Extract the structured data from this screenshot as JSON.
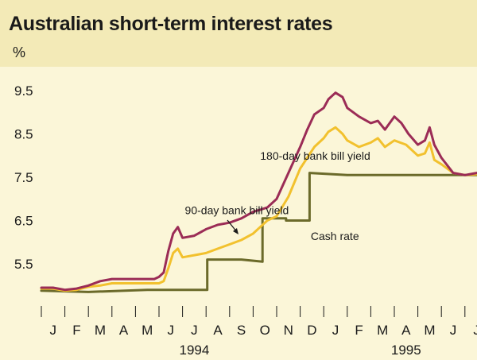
{
  "chart_data": {
    "type": "line",
    "title": "Australian short-term interest rates",
    "ylabel": "%",
    "xlabel": "",
    "ylim": [
      4.8,
      9.9
    ],
    "yticks": [
      "9.5",
      "8.5",
      "7.5",
      "6.5",
      "5.5"
    ],
    "ytick_values": [
      9.5,
      8.5,
      7.5,
      6.5,
      5.5
    ],
    "months": [
      "J",
      "F",
      "M",
      "A",
      "M",
      "J",
      "J",
      "A",
      "S",
      "O",
      "N",
      "D",
      "J",
      "F",
      "M",
      "A",
      "M",
      "J",
      "J"
    ],
    "years": [
      {
        "label": "1994",
        "month_index": 6.5
      },
      {
        "label": "1995",
        "month_index": 15.5
      }
    ],
    "grid": false,
    "series": [
      {
        "name": "180-day bank bill yield",
        "color": "#9b2c56",
        "x": [
          0,
          0.5,
          1.0,
          1.5,
          2.0,
          2.5,
          3.0,
          3.5,
          4.0,
          4.5,
          4.8,
          5.0,
          5.2,
          5.4,
          5.6,
          5.8,
          6.0,
          6.5,
          7.0,
          7.5,
          8.0,
          8.5,
          9.0,
          9.3,
          9.6,
          10.0,
          10.5,
          11.0,
          11.3,
          11.6,
          12.0,
          12.2,
          12.5,
          12.8,
          13.0,
          13.5,
          14.0,
          14.3,
          14.6,
          15.0,
          15.3,
          15.6,
          16.0,
          16.3,
          16.5,
          16.7,
          17.0,
          17.5,
          18.0,
          18.5,
          18.9
        ],
        "values": [
          4.95,
          4.95,
          4.9,
          4.93,
          5.0,
          5.1,
          5.15,
          5.15,
          5.15,
          5.15,
          5.15,
          5.2,
          5.3,
          5.8,
          6.2,
          6.35,
          6.1,
          6.15,
          6.3,
          6.4,
          6.45,
          6.55,
          6.7,
          6.75,
          6.8,
          7.0,
          7.6,
          8.2,
          8.6,
          8.95,
          9.1,
          9.3,
          9.45,
          9.35,
          9.1,
          8.9,
          8.75,
          8.8,
          8.6,
          8.9,
          8.75,
          8.5,
          8.25,
          8.35,
          8.65,
          8.25,
          7.95,
          7.6,
          7.55,
          7.6,
          7.58
        ]
      },
      {
        "name": "90-day bank bill yield",
        "color": "#f2c12e",
        "x": [
          0,
          0.5,
          1.0,
          1.5,
          2.0,
          2.5,
          3.0,
          3.5,
          4.0,
          4.5,
          5.0,
          5.2,
          5.4,
          5.6,
          5.8,
          6.0,
          6.5,
          7.0,
          7.5,
          8.0,
          8.5,
          9.0,
          9.3,
          9.6,
          10.0,
          10.5,
          11.0,
          11.3,
          11.6,
          12.0,
          12.2,
          12.5,
          12.8,
          13.0,
          13.5,
          14.0,
          14.3,
          14.6,
          15.0,
          15.5,
          16.0,
          16.3,
          16.5,
          16.7,
          17.0,
          17.5,
          18.0,
          18.5,
          18.9
        ],
        "values": [
          4.93,
          4.93,
          4.88,
          4.9,
          4.97,
          5.0,
          5.05,
          5.05,
          5.05,
          5.05,
          5.05,
          5.1,
          5.4,
          5.75,
          5.85,
          5.65,
          5.7,
          5.75,
          5.85,
          5.95,
          6.05,
          6.2,
          6.35,
          6.5,
          6.6,
          7.05,
          7.7,
          7.95,
          8.2,
          8.4,
          8.55,
          8.65,
          8.5,
          8.35,
          8.2,
          8.3,
          8.4,
          8.2,
          8.35,
          8.25,
          8.0,
          8.05,
          8.3,
          7.9,
          7.8,
          7.6,
          7.55,
          7.57,
          7.57
        ]
      },
      {
        "name": "Cash rate",
        "color": "#6b6a2a",
        "x": [
          0,
          2.0,
          4.5,
          6.0,
          7.05,
          7.05,
          8.5,
          9.4,
          9.4,
          10.4,
          10.4,
          11.4,
          11.4,
          13.0,
          15.0,
          16.0,
          17.0,
          18.0,
          18.9
        ],
        "values": [
          4.88,
          4.85,
          4.9,
          4.9,
          4.9,
          5.6,
          5.6,
          5.55,
          6.55,
          6.55,
          6.5,
          6.5,
          7.6,
          7.55,
          7.55,
          7.55,
          7.55,
          7.55,
          7.55
        ]
      }
    ],
    "annotations": [
      {
        "text": "180-day bank bill yield",
        "x": 9.3,
        "y": 7.9
      },
      {
        "text": "90-day bank bill yield",
        "x": 6.1,
        "y": 6.65
      },
      {
        "text": "Cash rate",
        "x": 11.45,
        "y": 6.05
      }
    ]
  }
}
